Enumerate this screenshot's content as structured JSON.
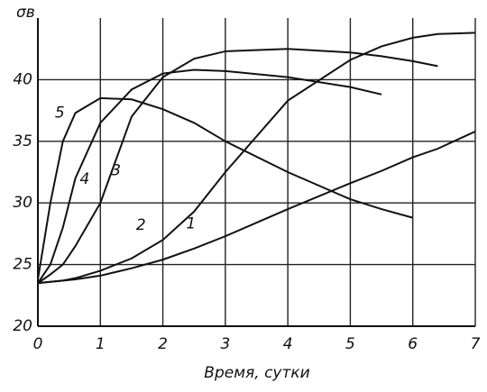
{
  "chart_data": {
    "type": "line",
    "ylabel": "σв",
    "xlabel": "Время, сутки",
    "x": [
      0,
      0.2,
      0.4,
      0.6,
      1,
      1.5,
      2,
      2.5,
      3,
      4,
      5,
      5.5,
      6,
      6.4,
      7
    ],
    "series": [
      {
        "name": "1",
        "color": "#111111",
        "values": [
          23.5,
          23.6,
          23.7,
          23.8,
          24.1,
          24.7,
          25.4,
          26.3,
          27.3,
          29.5,
          31.6,
          32.6,
          33.7,
          34.4,
          35.8
        ]
      },
      {
        "name": "2",
        "color": "#111111",
        "values": [
          23.5,
          23.6,
          23.7,
          23.9,
          24.5,
          25.5,
          27,
          29.3,
          32.5,
          38.3,
          41.6,
          42.7,
          43.4,
          43.7,
          43.8
        ]
      },
      {
        "name": "3",
        "color": "#111111",
        "values": [
          23.5,
          24.2,
          25,
          26.5,
          30,
          37,
          40.2,
          41.7,
          42.3,
          42.5,
          42.2,
          41.9,
          41.5,
          41.1,
          null
        ]
      },
      {
        "name": "4",
        "color": "#111111",
        "values": [
          23.5,
          25,
          28,
          32,
          36.5,
          39.2,
          40.5,
          40.8,
          40.7,
          40.2,
          39.4,
          38.8,
          null,
          null,
          null
        ]
      },
      {
        "name": "5",
        "color": "#111111",
        "values": [
          23.8,
          30,
          35,
          37.3,
          38.5,
          38.4,
          37.6,
          36.5,
          35,
          32.5,
          30.3,
          29.5,
          28.8,
          null,
          null
        ]
      }
    ],
    "xlim": [
      0,
      7
    ],
    "ylim": [
      20,
      45
    ],
    "xticks": [
      0,
      1,
      2,
      3,
      4,
      5,
      6,
      7
    ],
    "yticks": [
      20,
      25,
      30,
      35,
      40
    ],
    "grid": true
  }
}
